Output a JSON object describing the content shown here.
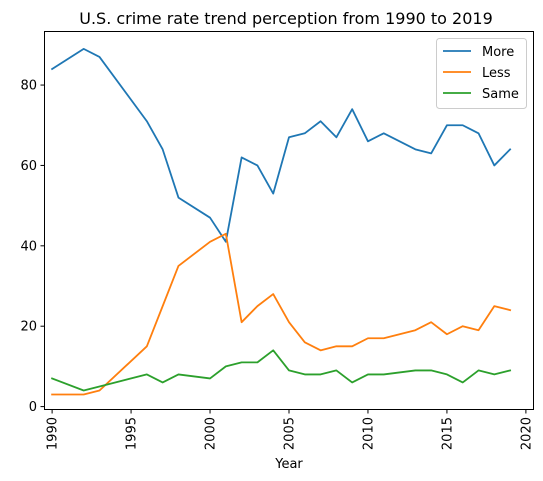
{
  "chart_data": {
    "type": "line",
    "title": "U.S. crime rate trend perception from 1990 to 2019",
    "xlabel": "Year",
    "ylabel": "",
    "xlim": [
      1989.55,
      2020.45
    ],
    "ylim": [
      -0.6,
      93.2
    ],
    "x_ticks": [
      1990,
      1995,
      2000,
      2005,
      2010,
      2015,
      2020
    ],
    "y_ticks": [
      0,
      20,
      40,
      60,
      80
    ],
    "grid": false,
    "legend_position": "top-right",
    "x": [
      1990,
      1992,
      1993,
      1996,
      1997,
      1998,
      2000,
      2001,
      2002,
      2003,
      2004,
      2005,
      2006,
      2007,
      2008,
      2009,
      2010,
      2011,
      2013,
      2014,
      2015,
      2016,
      2017,
      2018,
      2019
    ],
    "series": [
      {
        "name": "More",
        "color": "#1f77b4",
        "values": [
          84,
          89,
          87,
          71,
          64,
          52,
          47,
          41,
          62,
          60,
          53,
          67,
          68,
          71,
          67,
          74,
          66,
          68,
          64,
          63,
          70,
          70,
          68,
          60,
          64
        ]
      },
      {
        "name": "Less",
        "color": "#ff7f0e",
        "values": [
          3,
          3,
          4,
          15,
          25,
          35,
          41,
          43,
          21,
          25,
          28,
          21,
          16,
          14,
          15,
          15,
          17,
          17,
          19,
          21,
          18,
          20,
          19,
          25,
          24
        ]
      },
      {
        "name": "Same",
        "color": "#2ca02c",
        "values": [
          7,
          4,
          5,
          8,
          6,
          8,
          7,
          10,
          11,
          11,
          14,
          9,
          8,
          8,
          9,
          6,
          8,
          8,
          9,
          9,
          8,
          6,
          9,
          8,
          9
        ]
      }
    ]
  }
}
